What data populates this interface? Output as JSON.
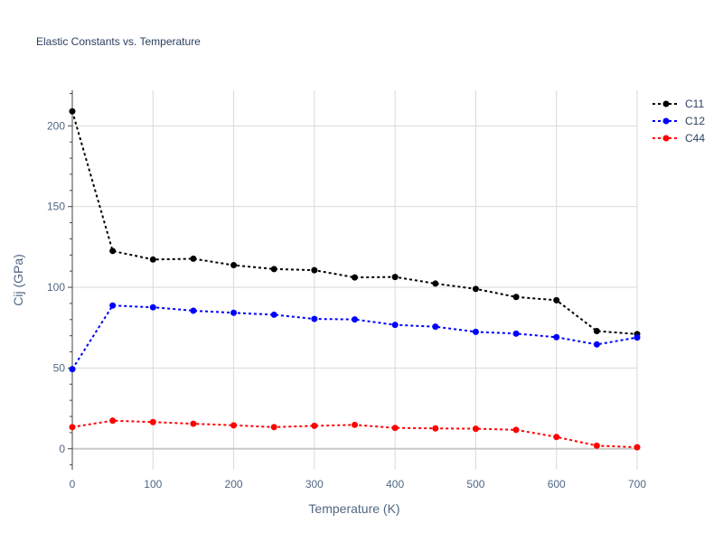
{
  "chart_data": {
    "type": "line",
    "title": "Elastic Constants vs. Temperature",
    "xlabel": "Temperature (K)",
    "ylabel": "Cij (GPa)",
    "xlim": [
      0,
      700
    ],
    "ylim": [
      -13,
      222
    ],
    "x_ticks": [
      0,
      100,
      200,
      300,
      400,
      500,
      600,
      700
    ],
    "y_ticks": [
      0,
      50,
      100,
      150,
      200
    ],
    "grid": true,
    "legend_position": "top-right",
    "x": [
      0,
      50,
      100,
      150,
      200,
      250,
      300,
      350,
      400,
      450,
      500,
      550,
      600,
      650,
      700
    ],
    "series": [
      {
        "name": "C11",
        "color": "#000000",
        "values": [
          209,
          122.5,
          117.2,
          117.7,
          113.7,
          111.3,
          110.6,
          106.1,
          106.4,
          102.3,
          99.0,
          94.0,
          92.0,
          72.9,
          71.0
        ]
      },
      {
        "name": "C12",
        "color": "#0000ff",
        "values": [
          49.3,
          88.7,
          87.6,
          85.5,
          84.2,
          83.0,
          80.4,
          80.1,
          76.7,
          75.6,
          72.4,
          71.3,
          69.1,
          64.6,
          68.9
        ]
      },
      {
        "name": "C44",
        "color": "#ff0000",
        "values": [
          13.4,
          17.4,
          16.5,
          15.5,
          14.5,
          13.4,
          14.2,
          14.8,
          12.9,
          12.6,
          12.4,
          11.7,
          7.3,
          1.9,
          0.9
        ]
      }
    ]
  }
}
